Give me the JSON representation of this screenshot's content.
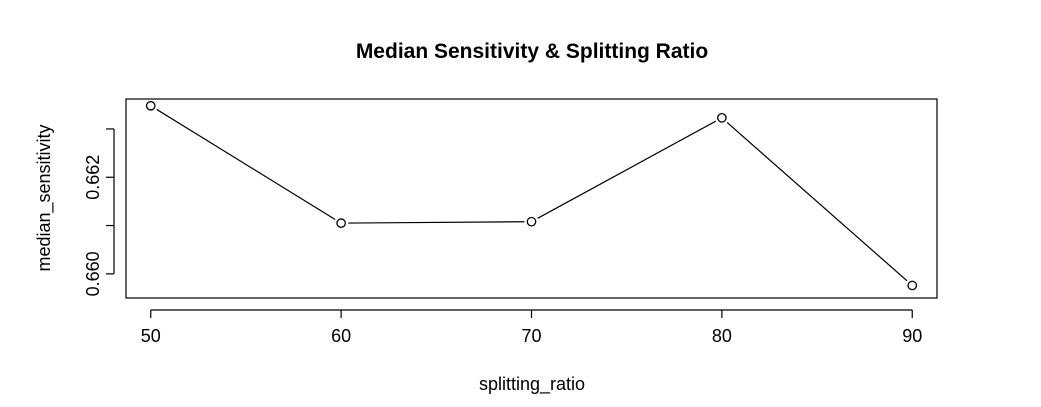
{
  "chart_data": {
    "type": "line",
    "title": "Median Sensitivity & Splitting Ratio",
    "xlabel": "splitting_ratio",
    "ylabel": "median_sensitivity",
    "x": [
      50,
      60,
      70,
      80,
      90
    ],
    "series": [
      {
        "values": [
          0.66348,
          0.66105,
          0.66108,
          0.66323,
          0.65976
        ]
      }
    ],
    "xticks": [
      50,
      60,
      70,
      80,
      90
    ],
    "xtick_labels": [
      "50",
      "60",
      "70",
      "80",
      "90"
    ],
    "yticks": [
      0.66,
      0.661,
      0.662,
      0.663
    ],
    "ytick_labels": [
      "0.660",
      "",
      "0.662",
      ""
    ],
    "xlim": [
      48.7,
      91.3
    ],
    "ylim": [
      0.6595,
      0.66362
    ],
    "grid": false,
    "line_color": "#000000",
    "marker": "open-circle"
  }
}
